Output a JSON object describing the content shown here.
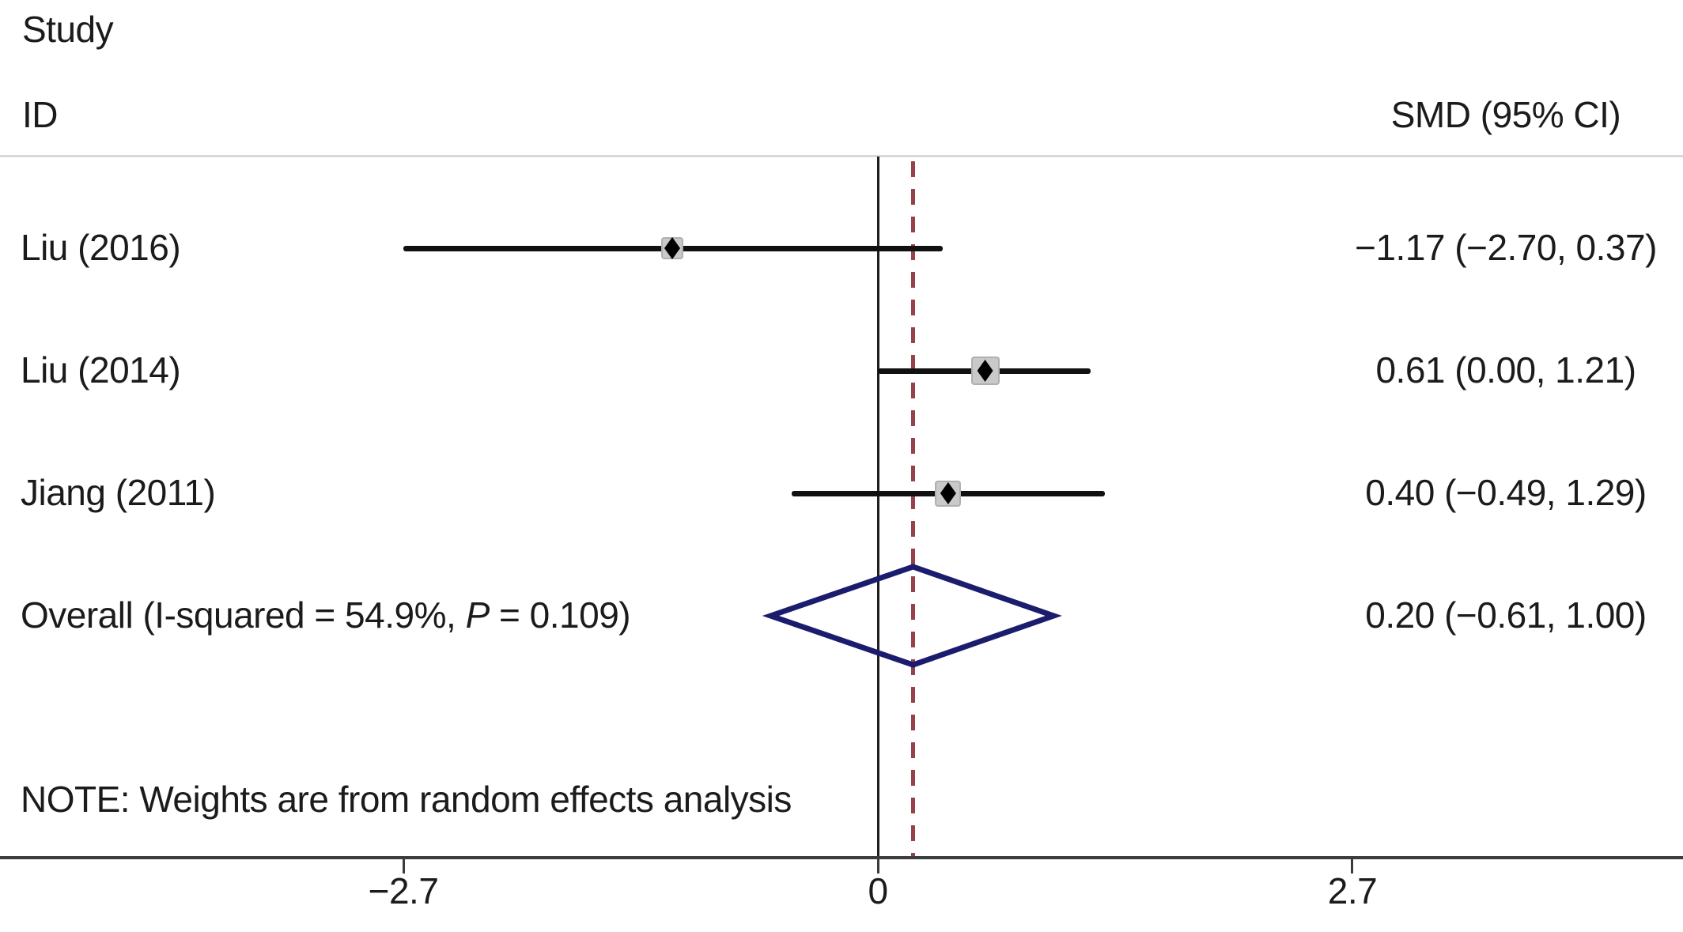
{
  "headers": {
    "study": "Study",
    "id": "ID",
    "smd": "SMD (95% CI)"
  },
  "note": "NOTE: Weights are from random effects analysis",
  "colors": {
    "ink": "#1b1b1b",
    "header_rule": "#d8d8d8",
    "axis": "#3c3c3c",
    "ci_line": "#111111",
    "null_line": "#1f1f1f",
    "dashed_overall_line": "#97424b",
    "weight_square": "#c9c9c9",
    "diamond": "#1c1c6e"
  },
  "chart_data": {
    "type": "forest",
    "title": "",
    "xlabel": "",
    "effect_measure": "SMD",
    "x_ticks": [
      -2.7,
      0,
      2.7
    ],
    "x_tick_labels": [
      "−2.7",
      "0",
      "2.7"
    ],
    "xlim": [
      -5.0,
      4.6
    ],
    "null_line_x": 0,
    "overall_dashed_x": 0.2,
    "studies": [
      {
        "id": "Liu (2016)",
        "smd": -1.17,
        "ci_lo": -2.7,
        "ci_hi": 0.37,
        "label": "−1.17 (−2.70, 0.37)",
        "marker_size_px": 28
      },
      {
        "id": "Liu (2014)",
        "smd": 0.61,
        "ci_lo": 0.0,
        "ci_hi": 1.21,
        "label": "0.61 (0.00, 1.21)",
        "marker_size_px": 36
      },
      {
        "id": "Jiang (2011)",
        "smd": 0.4,
        "ci_lo": -0.49,
        "ci_hi": 1.29,
        "label": "0.40 (−0.49, 1.29)",
        "marker_size_px": 33
      }
    ],
    "overall": {
      "label_pre": "Overall (I-squared = 54.9%, ",
      "label_p": "P",
      "label_post": " = 0.109)",
      "smd": 0.2,
      "ci_lo": -0.61,
      "ci_hi": 1.0,
      "label": "0.20 (−0.61, 1.00)",
      "heterogeneity_i_squared_pct": 54.9,
      "heterogeneity_p": 0.109
    },
    "note": "NOTE: Weights are from random effects analysis",
    "legend": "none",
    "grid": false
  }
}
